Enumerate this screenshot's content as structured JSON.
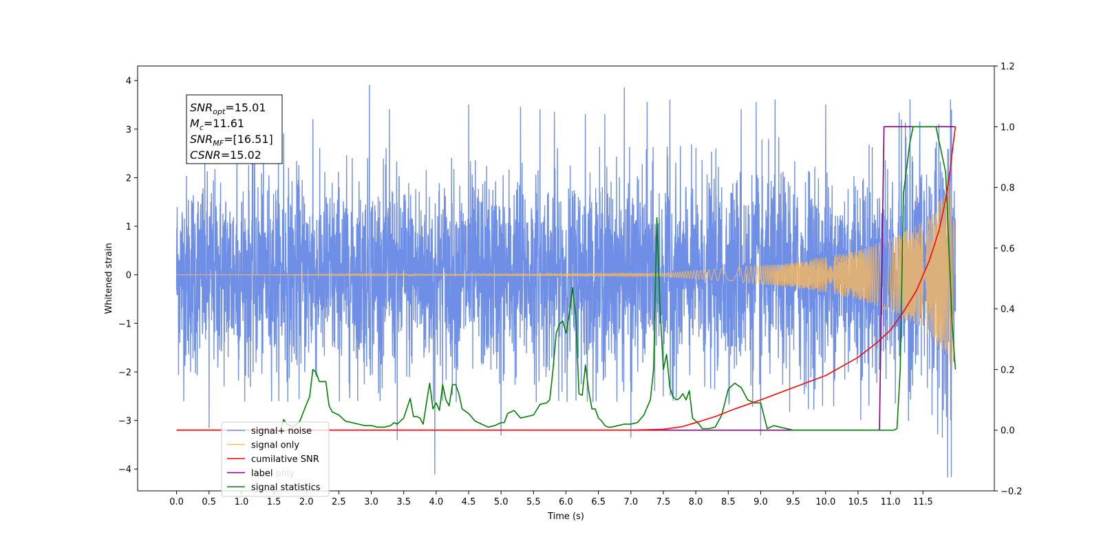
{
  "chart_data": {
    "type": "line",
    "xlabel": "Time (s)",
    "ylabel": "Whitened strain",
    "xlim": [
      -0.6,
      12.6
    ],
    "ylim": [
      -4.45,
      4.3
    ],
    "y2lim": [
      -0.2,
      1.2
    ],
    "x_ticks": [
      "0.0",
      "0.5",
      "1.0",
      "1.5",
      "2.0",
      "2.5",
      "3.0",
      "3.5",
      "4.0",
      "4.5",
      "5.0",
      "5.5",
      "6.0",
      "6.5",
      "7.0",
      "7.5",
      "8.0",
      "8.5",
      "9.0",
      "9.5",
      "10.0",
      "10.5",
      "11.0",
      "11.5"
    ],
    "y_ticks": [
      "4",
      "3",
      "2",
      "1",
      "0",
      "−1",
      "−2",
      "−3",
      "−4"
    ],
    "y2_ticks": [
      "1.2",
      "1.0",
      "0.8",
      "0.6",
      "0.4",
      "0.2",
      "0.0",
      "−0.2"
    ],
    "annotation": {
      "lines": [
        {
          "main": "SNR",
          "sub": "opt",
          "rest": "=15.01"
        },
        {
          "main": "M",
          "sub": "c",
          "rest": "=11.61"
        },
        {
          "main": "SNR",
          "sub": "MF",
          "rest": "=[16.51]"
        },
        {
          "main": "CSNR",
          "sub": "",
          "rest": "=15.02"
        }
      ]
    },
    "legend": {
      "placement": "lower-left",
      "entries": [
        "signal+ noise",
        "signal only",
        "cumilative SNR",
        "label",
        "signal statistics"
      ],
      "hidden_text": "label only"
    },
    "series": [
      {
        "name": "signal+ noise",
        "axis": "left",
        "color": "#6f8fe6",
        "noise_std": 1.0,
        "x_start": 0.0,
        "x_end": 12.0,
        "spikes": [
          [
            0.5,
            -3.15
          ],
          [
            0.93,
            2.9
          ],
          [
            1.2,
            3.05
          ],
          [
            1.65,
            2.9
          ],
          [
            2.1,
            3.2
          ],
          [
            2.97,
            3.9
          ],
          [
            3.28,
            3.4
          ],
          [
            3.4,
            -3.4
          ],
          [
            3.98,
            -4.1
          ],
          [
            4.5,
            3.5
          ],
          [
            5.0,
            -3.3
          ],
          [
            5.3,
            3.45
          ],
          [
            5.6,
            3.4
          ],
          [
            5.82,
            3.35
          ],
          [
            6.3,
            3.3
          ],
          [
            6.6,
            3.3
          ],
          [
            6.9,
            3.85
          ],
          [
            7.0,
            -3.35
          ],
          [
            7.25,
            3.55
          ],
          [
            7.6,
            3.6
          ],
          [
            8.7,
            3.4
          ],
          [
            8.93,
            3.55
          ],
          [
            9.0,
            -3.3
          ],
          [
            9.22,
            3.6
          ],
          [
            10.0,
            3.5
          ],
          [
            11.3,
            3.6
          ],
          [
            11.8,
            -3.35
          ],
          [
            11.45,
            3.15
          ]
        ]
      },
      {
        "name": "signal only",
        "axis": "left",
        "color": "#ffbb55",
        "description_points": [
          [
            0.0,
            0.0
          ],
          [
            7.5,
            0.03
          ],
          [
            9.5,
            0.25
          ],
          [
            10.5,
            0.5
          ],
          [
            11.0,
            0.75
          ],
          [
            11.5,
            1.1
          ],
          [
            11.85,
            1.7
          ],
          [
            11.95,
            2.0
          ],
          [
            12.0,
            0.3
          ]
        ]
      },
      {
        "name": "cumilative SNR",
        "axis": "right",
        "color": "#ff0000",
        "x": [
          0.0,
          7.0,
          7.5,
          7.8,
          8.0,
          8.3,
          8.6,
          9.0,
          9.5,
          10.0,
          10.5,
          10.8,
          11.0,
          11.2,
          11.4,
          11.6,
          11.75,
          11.85,
          11.92,
          11.97,
          12.0
        ],
        "y": [
          0.0,
          0.0,
          0.003,
          0.012,
          0.025,
          0.045,
          0.07,
          0.1,
          0.14,
          0.18,
          0.24,
          0.29,
          0.33,
          0.39,
          0.46,
          0.56,
          0.66,
          0.76,
          0.86,
          0.95,
          1.0
        ]
      },
      {
        "name": "label",
        "axis": "right",
        "color": "#800080",
        "x": [
          0.0,
          10.83,
          10.9,
          12.0
        ],
        "y": [
          0.0,
          0.0,
          1.0,
          1.0
        ]
      },
      {
        "name": "signal statistics",
        "axis": "right",
        "color": "#008000",
        "x": [
          0.0,
          1.6,
          1.65,
          1.7,
          1.8,
          1.9,
          2.0,
          2.05,
          2.1,
          2.15,
          2.2,
          2.3,
          2.35,
          2.4,
          2.5,
          2.6,
          2.7,
          2.8,
          2.9,
          3.0,
          3.1,
          3.2,
          3.3,
          3.35,
          3.4,
          3.5,
          3.6,
          3.65,
          3.7,
          3.75,
          3.8,
          3.85,
          3.9,
          3.95,
          4.0,
          4.05,
          4.1,
          4.15,
          4.2,
          4.25,
          4.3,
          4.35,
          4.4,
          4.5,
          4.6,
          4.7,
          4.8,
          4.9,
          5.0,
          5.05,
          5.1,
          5.15,
          5.2,
          5.3,
          5.4,
          5.5,
          5.6,
          5.7,
          5.75,
          5.8,
          5.85,
          5.9,
          5.95,
          6.0,
          6.05,
          6.1,
          6.15,
          6.2,
          6.25,
          6.3,
          6.35,
          6.4,
          6.45,
          6.5,
          6.55,
          6.6,
          6.65,
          6.7,
          6.8,
          6.9,
          7.0,
          7.1,
          7.2,
          7.3,
          7.35,
          7.4,
          7.45,
          7.5,
          7.55,
          7.6,
          7.65,
          7.7,
          7.75,
          7.8,
          7.85,
          7.9,
          7.95,
          8.0,
          8.05,
          8.1,
          8.2,
          8.3,
          8.4,
          8.5,
          8.6,
          8.7,
          8.8,
          8.9,
          9.0,
          9.1,
          9.2,
          9.3,
          9.5,
          10.0,
          10.5,
          11.0,
          11.05,
          11.1,
          11.15,
          11.2,
          11.3,
          11.35,
          11.4,
          11.5,
          11.7,
          11.85,
          11.9,
          11.95,
          12.0
        ],
        "y": [
          0.0,
          0.0,
          0.035,
          0.02,
          0.01,
          0.03,
          0.085,
          0.11,
          0.2,
          0.19,
          0.16,
          0.16,
          0.08,
          0.06,
          0.05,
          0.03,
          0.025,
          0.02,
          0.015,
          0.015,
          0.01,
          0.01,
          0.015,
          0.025,
          0.02,
          0.04,
          0.105,
          0.045,
          0.045,
          0.04,
          0.02,
          0.09,
          0.155,
          0.07,
          0.09,
          0.065,
          0.15,
          0.1,
          0.08,
          0.15,
          0.15,
          0.12,
          0.07,
          0.055,
          0.03,
          0.02,
          0.01,
          0.015,
          0.025,
          0.025,
          0.055,
          0.06,
          0.065,
          0.04,
          0.045,
          0.05,
          0.085,
          0.09,
          0.1,
          0.2,
          0.32,
          0.35,
          0.36,
          0.32,
          0.38,
          0.47,
          0.38,
          0.12,
          0.115,
          0.215,
          0.13,
          0.07,
          0.07,
          0.04,
          0.03,
          0.015,
          0.01,
          0.01,
          0.015,
          0.02,
          0.02,
          0.025,
          0.05,
          0.1,
          0.2,
          0.7,
          0.4,
          0.2,
          0.25,
          0.14,
          0.11,
          0.1,
          0.105,
          0.12,
          0.1,
          0.13,
          0.04,
          0.03,
          0.02,
          0.005,
          0.005,
          0.01,
          0.05,
          0.135,
          0.155,
          0.14,
          0.1,
          0.09,
          0.09,
          0.005,
          0.015,
          0.01,
          0.0,
          0.0,
          0.0,
          0.0,
          0.0,
          0.005,
          0.2,
          0.78,
          0.95,
          1.0,
          1.0,
          1.0,
          1.0,
          0.85,
          0.6,
          0.35,
          0.2
        ]
      }
    ]
  }
}
